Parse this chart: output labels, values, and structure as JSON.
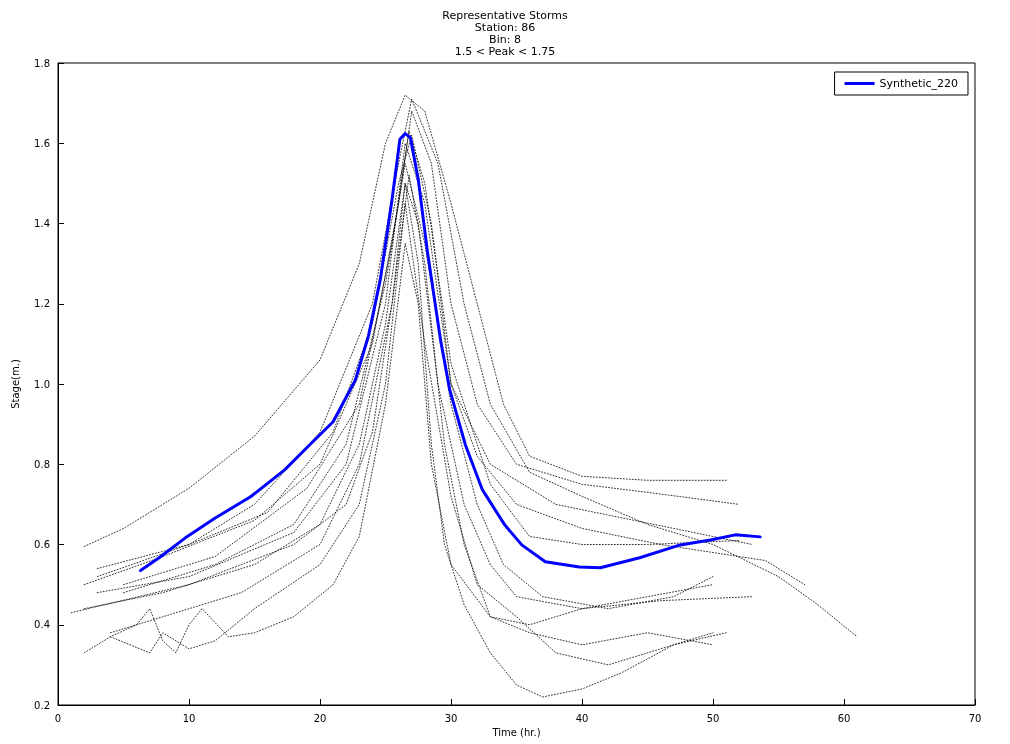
{
  "chart_data": {
    "type": "line",
    "title": "Representative Storms\nStation: 86\nBin: 8\n1.5 < Peak < 1.75",
    "xlabel": "Time (hr.)",
    "ylabel": "Stage(m.)",
    "xlim": [
      0,
      70
    ],
    "xticks": [
      0,
      10,
      20,
      30,
      40,
      50,
      60,
      70
    ],
    "ylim": [
      0.2,
      1.8
    ],
    "yticks": [
      {
        "value": 0.2,
        "label": "0.2"
      },
      {
        "value": 0.4,
        "label": "0.4"
      },
      {
        "value": 0.6,
        "label": "0.6"
      },
      {
        "value": 0.8,
        "label": "0.8"
      },
      {
        "value": 1.0,
        "label": "1.0"
      },
      {
        "value": 1.2,
        "label": "1.2"
      },
      {
        "value": 1.4,
        "label": "1.4"
      },
      {
        "value": 1.6,
        "label": "1.6"
      },
      {
        "value": 1.8,
        "label": "1.8"
      }
    ],
    "grid": false,
    "legend": "top right",
    "marker": "none",
    "series": [
      {
        "color": "#000000",
        "line_style": "dotted",
        "x": [
          2,
          5,
          10,
          15,
          20,
          23,
          25,
          26.5,
          28,
          30,
          32,
          34,
          36,
          40,
          45,
          51
        ],
        "values": [
          0.595,
          0.64,
          0.74,
          0.87,
          1.06,
          1.3,
          1.6,
          1.72,
          1.68,
          1.45,
          1.2,
          0.95,
          0.82,
          0.77,
          0.76,
          0.76
        ]
      },
      {
        "color": "#000000",
        "line_style": "dotted",
        "x": [
          3,
          10,
          15,
          20,
          24,
          26,
          27,
          29,
          31,
          33,
          36,
          40,
          45,
          50,
          55,
          58,
          61
        ],
        "values": [
          0.52,
          0.6,
          0.7,
          0.88,
          1.2,
          1.55,
          1.71,
          1.55,
          1.2,
          0.95,
          0.78,
          0.72,
          0.65,
          0.6,
          0.52,
          0.45,
          0.37
        ]
      },
      {
        "color": "#000000",
        "line_style": "dotted",
        "x": [
          2,
          8,
          15,
          20,
          24,
          26,
          27,
          28.5,
          30,
          32,
          35,
          40,
          45,
          52
        ],
        "values": [
          0.5,
          0.57,
          0.66,
          0.8,
          1.1,
          1.45,
          1.68,
          1.55,
          1.2,
          0.95,
          0.8,
          0.75,
          0.73,
          0.7
        ]
      },
      {
        "color": "#000000",
        "line_style": "dotted",
        "x": [
          3,
          10,
          18,
          22,
          25,
          26.5,
          28,
          30,
          33,
          38,
          44,
          53
        ],
        "values": [
          0.48,
          0.52,
          0.63,
          0.8,
          1.2,
          1.6,
          1.45,
          1.0,
          0.8,
          0.7,
          0.66,
          0.6
        ]
      },
      {
        "color": "#000000",
        "line_style": "dotted",
        "x": [
          2,
          8,
          15,
          20,
          23,
          25,
          26.5,
          27.5,
          29,
          31,
          33,
          35,
          40,
          45,
          50
        ],
        "values": [
          0.44,
          0.48,
          0.55,
          0.65,
          0.85,
          1.15,
          1.5,
          1.4,
          1.0,
          0.7,
          0.55,
          0.47,
          0.44,
          0.47,
          0.5
        ]
      },
      {
        "color": "#000000",
        "line_style": "dotted",
        "x": [
          4,
          8,
          14,
          20,
          23,
          25.5,
          26.8,
          28,
          29.5,
          31,
          33,
          36,
          40,
          46,
          53
        ],
        "values": [
          0.38,
          0.42,
          0.48,
          0.6,
          0.8,
          1.2,
          1.52,
          1.3,
          0.85,
          0.6,
          0.42,
          0.4,
          0.44,
          0.46,
          0.47
        ]
      },
      {
        "color": "#000000",
        "line_style": "dotted",
        "x": [
          2,
          4,
          6,
          7,
          8,
          9,
          10,
          11,
          13,
          15,
          18,
          21,
          23,
          25,
          26.5,
          27.5,
          28.5,
          30,
          33,
          36,
          40,
          45,
          50
        ],
        "values": [
          0.33,
          0.37,
          0.4,
          0.44,
          0.36,
          0.33,
          0.4,
          0.44,
          0.37,
          0.38,
          0.42,
          0.5,
          0.62,
          0.95,
          1.35,
          1.2,
          0.8,
          0.55,
          0.42,
          0.38,
          0.35,
          0.38,
          0.35
        ]
      },
      {
        "color": "#000000",
        "line_style": "dotted",
        "x": [
          4,
          7,
          8,
          10,
          12,
          15,
          20,
          23,
          25,
          26.5,
          28,
          30,
          32,
          35,
          38,
          42,
          47,
          51
        ],
        "values": [
          0.37,
          0.33,
          0.38,
          0.34,
          0.36,
          0.44,
          0.55,
          0.7,
          1.0,
          1.45,
          1.1,
          0.72,
          0.5,
          0.42,
          0.33,
          0.3,
          0.35,
          0.38
        ]
      },
      {
        "color": "#000000",
        "line_style": "dotted",
        "x": [
          1,
          10,
          18,
          22,
          24,
          25.5,
          26.5,
          27.5,
          28.5,
          29.5,
          31,
          33,
          35,
          37,
          40,
          43,
          47,
          50
        ],
        "values": [
          0.43,
          0.5,
          0.6,
          0.7,
          0.88,
          1.2,
          1.5,
          1.3,
          0.85,
          0.6,
          0.45,
          0.33,
          0.25,
          0.22,
          0.24,
          0.28,
          0.35,
          0.38
        ]
      },
      {
        "color": "#000000",
        "line_style": "dotted",
        "x": [
          3,
          10,
          16,
          21,
          24,
          26,
          27,
          28.5,
          30,
          32,
          35,
          40,
          46,
          54,
          57
        ],
        "values": [
          0.54,
          0.6,
          0.68,
          0.88,
          1.15,
          1.5,
          1.62,
          1.4,
          1.0,
          0.82,
          0.7,
          0.64,
          0.6,
          0.56,
          0.5
        ]
      },
      {
        "color": "#000000",
        "line_style": "dotted",
        "x": [
          5,
          12,
          18,
          22,
          25,
          26.5,
          28,
          30,
          32,
          34,
          37,
          42,
          47,
          50
        ],
        "values": [
          0.48,
          0.55,
          0.65,
          0.85,
          1.25,
          1.55,
          1.35,
          0.95,
          0.7,
          0.55,
          0.47,
          0.44,
          0.47,
          0.52
        ]
      },
      {
        "color": "#000000",
        "line_style": "dotted",
        "x": [
          5,
          12,
          19,
          23,
          25.5,
          26.8,
          28,
          30,
          33,
          36,
          40,
          45,
          52
        ],
        "values": [
          0.5,
          0.57,
          0.74,
          0.95,
          1.35,
          1.63,
          1.5,
          1.05,
          0.75,
          0.62,
          0.6,
          0.6,
          0.61
        ]
      },
      {
        "name": "Synthetic_220",
        "color": "#0000ff",
        "line_style": "solid",
        "x": [
          6.3,
          7.8,
          9.7,
          12.0,
          14.7,
          17.3,
          19.2,
          21.0,
          22.7,
          23.7,
          24.6,
          25.5,
          26.1,
          26.5,
          26.9,
          27.5,
          28.2,
          29.2,
          29.9,
          31.1,
          32.4,
          34.1,
          35.4,
          37.2,
          39.8,
          41.4,
          44.4,
          47.5,
          49.8,
          51.7,
          53.6
        ],
        "values": [
          0.535,
          0.569,
          0.616,
          0.666,
          0.719,
          0.786,
          0.848,
          0.906,
          1.01,
          1.12,
          1.26,
          1.46,
          1.61,
          1.624,
          1.614,
          1.51,
          1.33,
          1.11,
          0.986,
          0.848,
          0.736,
          0.649,
          0.599,
          0.557,
          0.544,
          0.542,
          0.567,
          0.599,
          0.611,
          0.624,
          0.619
        ]
      }
    ]
  }
}
